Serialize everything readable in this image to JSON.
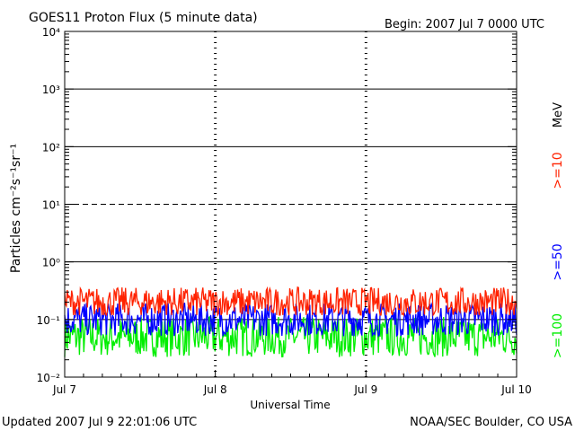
{
  "chart_data": {
    "type": "line",
    "title": "GOES11 Proton Flux (5 minute data)",
    "begin_label": "Begin: 2007 Jul 7 0000 UTC",
    "xlabel": "Universal Time",
    "ylabel": "Particles cm⁻²s⁻¹sr⁻¹",
    "x_ticks": [
      "Jul 7",
      "Jul 8",
      "Jul 9",
      "Jul 10"
    ],
    "x_range_days": [
      0,
      3
    ],
    "y_scale": "log",
    "y_range": [
      0.01,
      10000
    ],
    "y_ticks": [
      "10⁻²",
      "10⁻¹",
      "10⁰",
      "10¹",
      "10²",
      "10³",
      "10⁴"
    ],
    "y_tick_exponents": [
      -2,
      -1,
      0,
      1,
      2,
      3,
      4
    ],
    "threshold_lines": [
      {
        "value": 0.1,
        "style": "solid"
      },
      {
        "value": 1,
        "style": "solid"
      },
      {
        "value": 10,
        "style": "dashed"
      },
      {
        "value": 100,
        "style": "solid"
      },
      {
        "value": 1000,
        "style": "solid"
      }
    ],
    "series": [
      {
        "name": ">=10",
        "color": "#ff2200",
        "typical": 0.2,
        "range": [
          0.12,
          0.45
        ]
      },
      {
        "name": ">=50",
        "color": "#0000ff",
        "typical": 0.1,
        "range": [
          0.05,
          0.22
        ]
      },
      {
        "name": ">=100",
        "color": "#00ee00",
        "typical": 0.05,
        "range": [
          0.02,
          0.12
        ]
      }
    ],
    "unit_label": "MeV",
    "legend_placement": "right"
  },
  "footer": {
    "updated": "Updated 2007 Jul  9 22:01:06 UTC",
    "source": "NOAA/SEC Boulder, CO USA"
  }
}
